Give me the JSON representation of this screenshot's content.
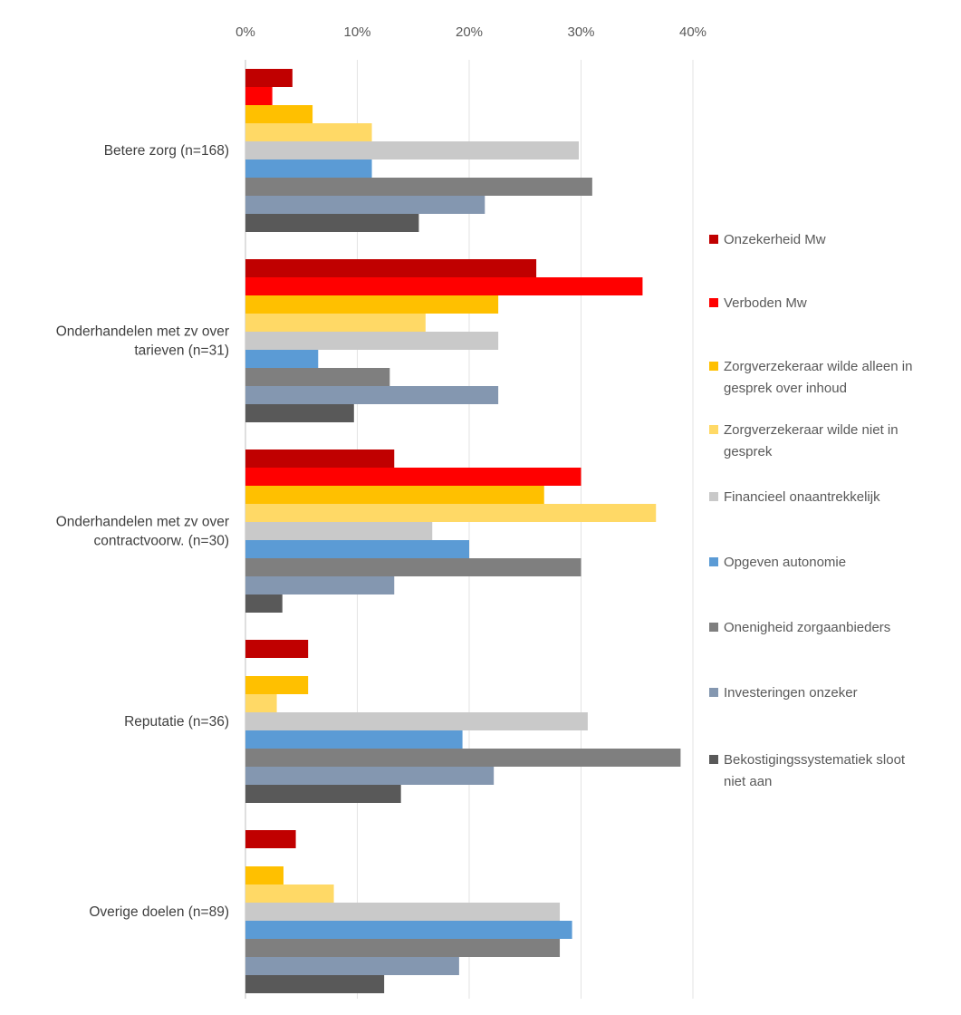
{
  "chart_data": {
    "type": "bar",
    "orientation": "horizontal",
    "xlim": [
      0,
      0.4
    ],
    "x_ticks": [
      "0%",
      "10%",
      "20%",
      "30%",
      "40%"
    ],
    "x_tick_values": [
      0,
      0.1,
      0.2,
      0.3,
      0.4
    ],
    "x_axis_position": "top",
    "grid": true,
    "legend_position": "right",
    "categories": [
      [
        "Betere zorg (n=168)"
      ],
      [
        "Onderhandelen met zv over",
        "tarieven (n=31)"
      ],
      [
        "Onderhandelen met zv over",
        "contractvoorw. (n=30)"
      ],
      [
        "Reputatie (n=36)"
      ],
      [
        "Overige doelen (n=89)"
      ]
    ],
    "series": [
      {
        "name": [
          "Onzekerheid Mw"
        ],
        "color": "#c00000",
        "values": [
          0.042,
          0.26,
          0.133,
          0.056,
          0.045
        ]
      },
      {
        "name": [
          "Verboden Mw"
        ],
        "color": "#ff0000",
        "values": [
          0.024,
          0.355,
          0.3,
          0.0,
          0.0
        ]
      },
      {
        "name": [
          "Zorgverzekeraar wilde alleen in",
          "gesprek over inhoud"
        ],
        "color": "#ffc000",
        "values": [
          0.06,
          0.226,
          0.267,
          0.056,
          0.034
        ]
      },
      {
        "name": [
          "Zorgverzekeraar wilde niet in",
          "gesprek"
        ],
        "color": "#ffd966",
        "values": [
          0.113,
          0.161,
          0.367,
          0.028,
          0.079
        ]
      },
      {
        "name": [
          "Financieel onaantrekkelijk"
        ],
        "color": "#c9c9c9",
        "values": [
          0.298,
          0.226,
          0.167,
          0.306,
          0.281
        ]
      },
      {
        "name": [
          "Opgeven autonomie"
        ],
        "color": "#5b9bd5",
        "values": [
          0.113,
          0.065,
          0.2,
          0.194,
          0.292
        ]
      },
      {
        "name": [
          "Onenigheid zorgaanbieders"
        ],
        "color": "#7f7f7f",
        "values": [
          0.31,
          0.129,
          0.3,
          0.389,
          0.281
        ]
      },
      {
        "name": [
          "Investeringen onzeker"
        ],
        "color": "#8497b0",
        "values": [
          0.214,
          0.226,
          0.133,
          0.222,
          0.191
        ]
      },
      {
        "name": [
          "Bekostigingssystematiek sloot",
          "niet aan"
        ],
        "color": "#595959",
        "values": [
          0.155,
          0.097,
          0.033,
          0.139,
          0.124
        ]
      }
    ]
  }
}
